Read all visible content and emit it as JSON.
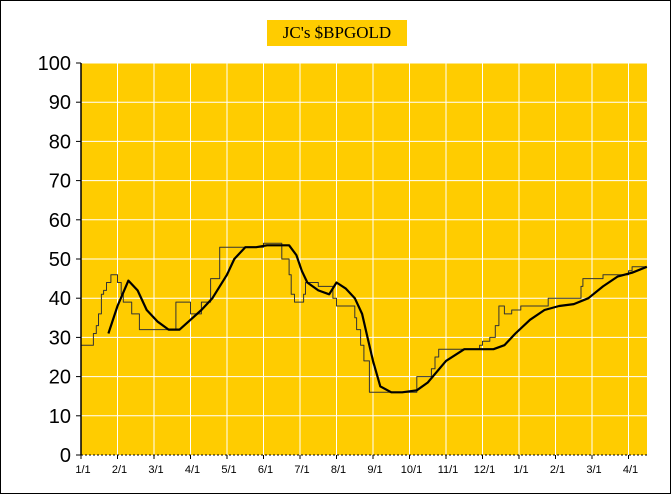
{
  "chart_data": {
    "type": "line",
    "title": "JC's $BPGOLD",
    "xlabel": "",
    "ylabel": "",
    "ylim": [
      0,
      100
    ],
    "yticks": [
      0,
      10,
      20,
      30,
      40,
      50,
      60,
      70,
      80,
      90,
      100
    ],
    "xticks": [
      "1/1",
      "2/1",
      "3/1",
      "4/1",
      "5/1",
      "6/1",
      "7/1",
      "8/1",
      "9/1",
      "10/1",
      "11/1",
      "12/1",
      "1/1",
      "2/1",
      "3/1",
      "4/1"
    ],
    "grid": true,
    "legend": "none",
    "colors": {
      "plot_background": "#ffcc00",
      "gridlines": "#ffffff",
      "series_daily": "#333333",
      "series_smoothed": "#000000",
      "title_background": "#ffcc00"
    },
    "series": [
      {
        "x": [
          0.0,
          0.25,
          0.34,
          0.42,
          0.48,
          0.56,
          0.62,
          0.7,
          0.82,
          0.97,
          1.0,
          1.1,
          1.16,
          1.3,
          1.39,
          1.6,
          1.8,
          2.1,
          2.5,
          2.6,
          2.9,
          3.0,
          3.3,
          3.55,
          3.8,
          4.0,
          4.2,
          4.5,
          4.8,
          5.0,
          5.3,
          5.5,
          5.7,
          5.76,
          5.85,
          6.0,
          6.1,
          6.15,
          6.4,
          6.5,
          6.8,
          6.9,
          7.0,
          7.4,
          7.5,
          7.55,
          7.66,
          7.75,
          7.9,
          8.05,
          8.1,
          8.6,
          8.85,
          9.0,
          9.2,
          9.3,
          9.35,
          9.6,
          9.7,
          9.8,
          10.1,
          10.3,
          10.6,
          10.9,
          10.92,
          11.0,
          11.2,
          11.35,
          11.45,
          11.6,
          11.8,
          12.0,
          12.05,
          12.4,
          12.5,
          12.8,
          13.1,
          13.4,
          13.7,
          13.75,
          14.0,
          14.15,
          14.3,
          14.6,
          14.9,
          15.0,
          15.1,
          15.5
        ],
        "values": [
          28,
          28,
          31,
          33,
          36,
          41,
          42,
          44,
          46,
          46,
          44,
          41,
          39,
          39,
          36,
          32,
          32,
          32,
          32,
          39,
          39,
          36,
          39,
          45,
          53,
          53,
          53,
          53,
          53,
          54,
          54,
          50,
          46,
          41,
          39,
          39,
          41,
          44,
          44,
          43,
          43,
          40,
          38,
          38,
          35,
          32,
          28,
          24,
          16,
          16,
          16,
          16,
          16,
          16,
          20,
          20,
          20,
          22,
          25,
          27,
          27,
          27,
          27,
          27,
          28,
          29,
          30,
          33,
          38,
          36,
          37,
          37,
          38,
          38,
          38,
          40,
          40,
          40,
          43,
          45,
          45,
          45,
          46,
          46,
          46,
          47,
          48,
          48
        ]
      },
      {
        "x": [
          0.75,
          1.0,
          1.3,
          1.55,
          1.8,
          2.1,
          2.4,
          2.7,
          3.0,
          3.3,
          3.6,
          4.0,
          4.2,
          4.5,
          4.8,
          5.1,
          5.4,
          5.7,
          5.9,
          6.05,
          6.2,
          6.5,
          6.8,
          7.0,
          7.25,
          7.5,
          7.7,
          7.85,
          8.0,
          8.2,
          8.5,
          8.8,
          9.2,
          9.5,
          10.0,
          10.5,
          11.0,
          11.3,
          11.6,
          11.9,
          12.3,
          12.7,
          13.1,
          13.5,
          13.9,
          14.3,
          14.7,
          15.1,
          15.5
        ],
        "values": [
          31,
          38,
          44.5,
          42,
          37,
          34,
          32,
          32,
          34.5,
          37,
          40,
          46,
          50,
          53,
          53,
          53.5,
          53.5,
          53.5,
          51,
          47,
          44,
          42,
          41,
          44,
          42.5,
          40,
          36,
          30,
          24,
          17.5,
          16,
          16,
          16.5,
          18.5,
          24,
          27,
          27,
          27,
          28,
          31,
          34.5,
          37,
          38,
          38.5,
          40,
          43,
          45.5,
          46.5,
          48
        ]
      }
    ]
  }
}
